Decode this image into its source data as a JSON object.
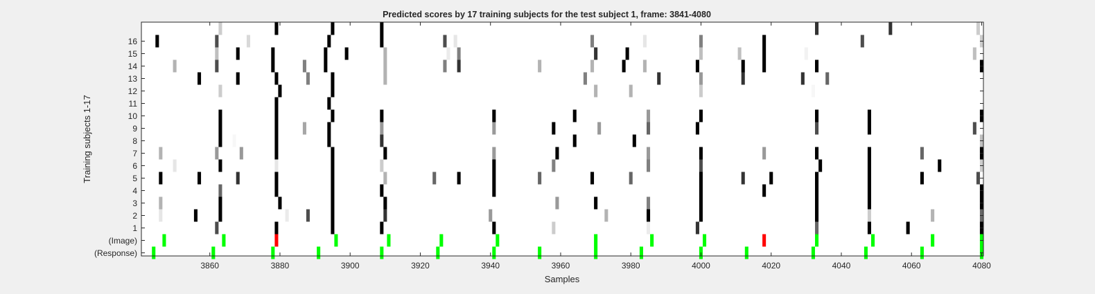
{
  "chart_data": {
    "type": "heatmap",
    "title": "Predicted scores by 17 training subjects for the test subject 1, frame: 3841-4080",
    "xlabel": "Samples",
    "ylabel": "Training subjects 1-17",
    "xlim": [
      3841,
      4080
    ],
    "x_ticks": [
      "3860",
      "3880",
      "3900",
      "3920",
      "3940",
      "3960",
      "3980",
      "4000",
      "4020",
      "4040",
      "4060",
      "4080"
    ],
    "y_ticks": [
      "16",
      "15",
      "14",
      "13",
      "12",
      "11",
      "10",
      "9",
      "8",
      "7",
      "6",
      "5",
      "4",
      "3",
      "2",
      "1",
      "(Image)",
      "(Response)"
    ],
    "grid": false,
    "colormap": "gray (white = 0, black = 1)",
    "image_color": "#00ff00",
    "image_error_color": "#ff0000",
    "response_color": "#00ff00",
    "subject_rows": [
      {
        "subject": 17,
        "marks": [
          [
            3863,
            0.2
          ],
          [
            3879,
            1
          ],
          [
            3895,
            1
          ],
          [
            3909,
            1
          ],
          [
            4033,
            0.8
          ],
          [
            4054,
            0.8
          ],
          [
            4079,
            0.2
          ]
        ]
      },
      {
        "subject": 16,
        "marks": [
          [
            3845,
            1
          ],
          [
            3862,
            0.7
          ],
          [
            3871,
            0.15
          ],
          [
            3894,
            1
          ],
          [
            3909,
            1
          ],
          [
            3927,
            0.7
          ],
          [
            3930,
            0.1
          ],
          [
            3969,
            0.5
          ],
          [
            3984,
            0.1
          ],
          [
            4000,
            0.5
          ],
          [
            4018,
            1
          ],
          [
            4046,
            0.7
          ],
          [
            4080,
            0.2
          ]
        ]
      },
      {
        "subject": 15,
        "marks": [
          [
            3862,
            0.25
          ],
          [
            3868,
            1
          ],
          [
            3878,
            1
          ],
          [
            3893,
            1
          ],
          [
            3899,
            1
          ],
          [
            3910,
            0.3
          ],
          [
            3928,
            0.08
          ],
          [
            3931,
            0.5
          ],
          [
            3970,
            0.8
          ],
          [
            3979,
            1
          ],
          [
            4000,
            0.25
          ],
          [
            4011,
            0.25
          ],
          [
            4018,
            1
          ],
          [
            4030,
            0.05
          ],
          [
            4078,
            0.25
          ]
        ]
      },
      {
        "subject": 14,
        "marks": [
          [
            3850,
            0.3
          ],
          [
            3862,
            0.7
          ],
          [
            3878,
            1
          ],
          [
            3887,
            0.5
          ],
          [
            3893,
            1
          ],
          [
            3910,
            0.3
          ],
          [
            3927,
            0.5
          ],
          [
            3931,
            0.8
          ],
          [
            3954,
            0.3
          ],
          [
            3969,
            0.3
          ],
          [
            3978,
            1
          ],
          [
            3984,
            0.3
          ],
          [
            3999,
            1
          ],
          [
            4012,
            1
          ],
          [
            4018,
            1
          ],
          [
            4033,
            1
          ],
          [
            4080,
            1
          ]
        ]
      },
      {
        "subject": 13,
        "marks": [
          [
            3857,
            1
          ],
          [
            3868,
            1
          ],
          [
            3879,
            1
          ],
          [
            3888,
            0.5
          ],
          [
            3895,
            1
          ],
          [
            3910,
            0.3
          ],
          [
            3967,
            0.5
          ],
          [
            3988,
            0.8
          ],
          [
            4000,
            0.4
          ],
          [
            4012,
            0.8
          ],
          [
            4029,
            0.8
          ],
          [
            4036,
            0.6
          ]
        ]
      },
      {
        "subject": 12,
        "marks": [
          [
            3863,
            0.2
          ],
          [
            3880,
            1
          ],
          [
            3895,
            1
          ],
          [
            3970,
            0.3
          ],
          [
            3980,
            0.3
          ],
          [
            4000,
            0.2
          ],
          [
            4032,
            0.03
          ]
        ]
      },
      {
        "subject": 11,
        "marks": [
          [
            3879,
            1
          ],
          [
            3894,
            1
          ]
        ]
      },
      {
        "subject": 10,
        "marks": [
          [
            3863,
            1
          ],
          [
            3879,
            1
          ],
          [
            3895,
            1
          ],
          [
            3909,
            1
          ],
          [
            3941,
            1
          ],
          [
            3964,
            1
          ],
          [
            3985,
            0.4
          ],
          [
            4000,
            1
          ],
          [
            4033,
            1
          ],
          [
            4048,
            1
          ],
          [
            4080,
            1
          ]
        ]
      },
      {
        "subject": 9,
        "marks": [
          [
            3863,
            1
          ],
          [
            3879,
            1
          ],
          [
            3887,
            0.35
          ],
          [
            3894,
            1
          ],
          [
            3909,
            0.4
          ],
          [
            3941,
            0.4
          ],
          [
            3958,
            1
          ],
          [
            3971,
            0.4
          ],
          [
            3985,
            0.6
          ],
          [
            3999,
            1
          ],
          [
            4033,
            0.7
          ],
          [
            4048,
            1
          ],
          [
            4078,
            0.7
          ]
        ]
      },
      {
        "subject": 8,
        "marks": [
          [
            3863,
            1
          ],
          [
            3867,
            0.03
          ],
          [
            3879,
            1
          ],
          [
            3894,
            1
          ],
          [
            3909,
            0.8
          ],
          [
            3964,
            1
          ],
          [
            3981,
            1
          ],
          [
            4080,
            0.25
          ]
        ]
      },
      {
        "subject": 7,
        "marks": [
          [
            3846,
            0.3
          ],
          [
            3862,
            0.4
          ],
          [
            3869,
            0.4
          ],
          [
            3879,
            1
          ],
          [
            3895,
            1
          ],
          [
            3910,
            1
          ],
          [
            3941,
            0.4
          ],
          [
            3959,
            1
          ],
          [
            3985,
            0.4
          ],
          [
            4000,
            1
          ],
          [
            4018,
            0.4
          ],
          [
            4033,
            1
          ],
          [
            4048,
            1
          ],
          [
            4063,
            0.6
          ],
          [
            4080,
            1
          ]
        ]
      },
      {
        "subject": 6,
        "marks": [
          [
            3850,
            0.1
          ],
          [
            3863,
            1
          ],
          [
            3879,
            0.1
          ],
          [
            3895,
            1
          ],
          [
            3909,
            0.2
          ],
          [
            3941,
            1
          ],
          [
            3958,
            0.5
          ],
          [
            3985,
            0.5
          ],
          [
            4000,
            0.7
          ],
          [
            4034,
            1
          ],
          [
            4048,
            1
          ],
          [
            4068,
            1
          ],
          [
            4080,
            0.2
          ]
        ]
      },
      {
        "subject": 5,
        "marks": [
          [
            3846,
            1
          ],
          [
            3857,
            1
          ],
          [
            3868,
            0.8
          ],
          [
            3879,
            1
          ],
          [
            3895,
            1
          ],
          [
            3910,
            0.3
          ],
          [
            3924,
            0.6
          ],
          [
            3931,
            1
          ],
          [
            3941,
            1
          ],
          [
            3954,
            0.6
          ],
          [
            3969,
            1
          ],
          [
            3980,
            0.6
          ],
          [
            4000,
            1
          ],
          [
            4012,
            0.8
          ],
          [
            4020,
            1
          ],
          [
            4033,
            1
          ],
          [
            4048,
            1
          ],
          [
            4063,
            1
          ],
          [
            4079,
            0.7
          ]
        ]
      },
      {
        "subject": 4,
        "marks": [
          [
            3863,
            0.6
          ],
          [
            3879,
            1
          ],
          [
            3895,
            1
          ],
          [
            3909,
            1
          ],
          [
            3941,
            1
          ],
          [
            4000,
            1
          ],
          [
            4018,
            1
          ],
          [
            4033,
            1
          ],
          [
            4048,
            1
          ],
          [
            4080,
            1
          ]
        ]
      },
      {
        "subject": 3,
        "marks": [
          [
            3846,
            0.3
          ],
          [
            3863,
            1
          ],
          [
            3880,
            1
          ],
          [
            3895,
            1
          ],
          [
            3910,
            1
          ],
          [
            3959,
            0.4
          ],
          [
            3970,
            1
          ],
          [
            3985,
            0.5
          ],
          [
            4000,
            1
          ],
          [
            4033,
            1
          ],
          [
            4048,
            1
          ],
          [
            4080,
            1
          ]
        ]
      },
      {
        "subject": 2,
        "marks": [
          [
            3846,
            0.1
          ],
          [
            3856,
            1
          ],
          [
            3863,
            1
          ],
          [
            3882,
            0.08
          ],
          [
            3888,
            0.7
          ],
          [
            3895,
            1
          ],
          [
            3910,
            0.8
          ],
          [
            3940,
            0.4
          ],
          [
            3973,
            0.3
          ],
          [
            3985,
            1
          ],
          [
            4000,
            1
          ],
          [
            4033,
            1
          ],
          [
            4048,
            0.2
          ],
          [
            4066,
            0.3
          ],
          [
            4080,
            0.6
          ]
        ]
      },
      {
        "subject": 1,
        "marks": [
          [
            3862,
            0.7
          ],
          [
            3879,
            1
          ],
          [
            3895,
            1
          ],
          [
            3909,
            1
          ],
          [
            3941,
            1
          ],
          [
            3958,
            0.2
          ],
          [
            3985,
            0.08
          ],
          [
            3999,
            0.8
          ],
          [
            4033,
            0.6
          ],
          [
            4048,
            1
          ],
          [
            4059,
            1
          ],
          [
            4080,
            1
          ]
        ]
      }
    ],
    "image_events": [
      3847,
      3864,
      3896,
      3911,
      3926,
      3942,
      3970,
      3986,
      4001,
      4033,
      4049,
      4066,
      4080
    ],
    "image_error_events": [
      3879,
      4018
    ],
    "response_events": [
      3844,
      3861,
      3878,
      3891,
      3909,
      3925,
      3941,
      3954,
      3970,
      3983,
      4000,
      4013,
      4032,
      4047,
      4063,
      4080
    ]
  }
}
